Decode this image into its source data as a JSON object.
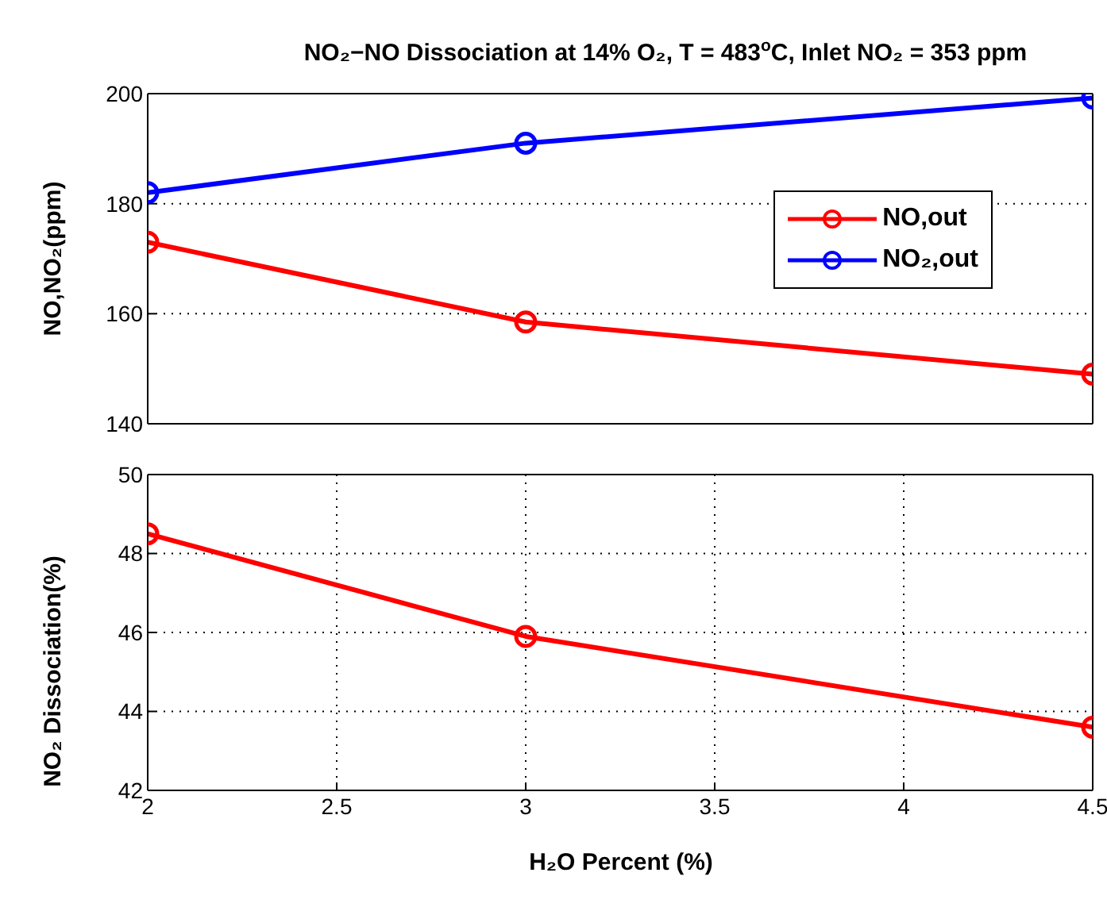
{
  "chart_data": [
    {
      "type": "line",
      "title": "NO₂−NO Dissociation at 14% O₂, T = 483$^{o}$C, Inlet NO₂ = 353 ppm",
      "ylabel": "NO,NO₂(ppm)",
      "x": [
        2,
        3,
        4.5
      ],
      "series": [
        {
          "name": "NO,out",
          "color": "#ff0000",
          "values": [
            173,
            158.5,
            149
          ]
        },
        {
          "name": "NO₂,out",
          "color": "#0000ff",
          "values": [
            182,
            191,
            199.2
          ]
        }
      ],
      "xlim": [
        2,
        4.5
      ],
      "xticks": [
        2,
        2.5,
        3,
        3.5,
        4,
        4.5
      ],
      "ylim": [
        140,
        200
      ],
      "yticks": [
        140,
        160,
        180,
        200
      ],
      "grid": true,
      "legend": "right",
      "marker": "circle",
      "line_style": "solid",
      "tick_labels": "y"
    },
    {
      "type": "line",
      "xlabel": "H₂O Percent (%)",
      "ylabel": "NO₂ Dissociation(%)",
      "x": [
        2,
        3,
        4.5
      ],
      "series": [
        {
          "color": "#ff0000",
          "values": [
            48.5,
            45.9,
            43.6
          ]
        }
      ],
      "xlim": [
        2,
        4.5
      ],
      "xticks": [
        2,
        2.5,
        3,
        3.5,
        4,
        4.5
      ],
      "ylim": [
        42,
        50
      ],
      "yticks": [
        42,
        44,
        46,
        48,
        50
      ],
      "grid": true,
      "marker": "circle",
      "line_style": "solid"
    }
  ]
}
